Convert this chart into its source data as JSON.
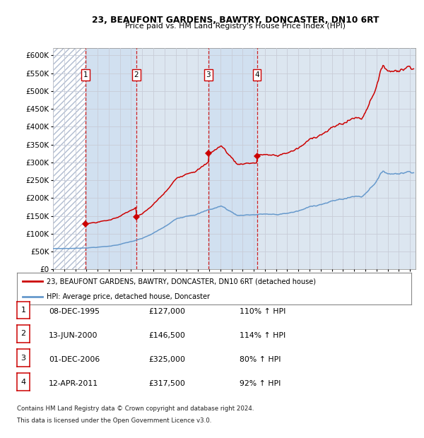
{
  "title1": "23, BEAUFONT GARDENS, BAWTRY, DONCASTER, DN10 6RT",
  "title2": "Price paid vs. HM Land Registry's House Price Index (HPI)",
  "legend_line1": "23, BEAUFONT GARDENS, BAWTRY, DONCASTER, DN10 6RT (detached house)",
  "legend_line2": "HPI: Average price, detached house, Doncaster",
  "footnote1": "Contains HM Land Registry data © Crown copyright and database right 2024.",
  "footnote2": "This data is licensed under the Open Government Licence v3.0.",
  "transactions": [
    {
      "num": 1,
      "date": "08-DEC-1995",
      "date_x": 1995.92,
      "price": 127000,
      "pct": "110% ↑ HPI"
    },
    {
      "num": 2,
      "date": "13-JUN-2000",
      "date_x": 2000.45,
      "price": 146500,
      "pct": "114% ↑ HPI"
    },
    {
      "num": 3,
      "date": "01-DEC-2006",
      "date_x": 2006.92,
      "price": 325000,
      "pct": "80% ↑ HPI"
    },
    {
      "num": 4,
      "date": "12-APR-2011",
      "date_x": 2011.28,
      "price": 317500,
      "pct": "92% ↑ HPI"
    }
  ],
  "xmin": 1993.0,
  "xmax": 2025.5,
  "ymin": 0,
  "ymax": 620000,
  "yticks": [
    0,
    50000,
    100000,
    150000,
    200000,
    250000,
    300000,
    350000,
    400000,
    450000,
    500000,
    550000,
    600000
  ],
  "red_color": "#cc0000",
  "blue_color": "#6699cc",
  "grid_color": "#c8ccd8",
  "panel_color": "#dce6f0",
  "hatch_color": "#b0bcd0"
}
